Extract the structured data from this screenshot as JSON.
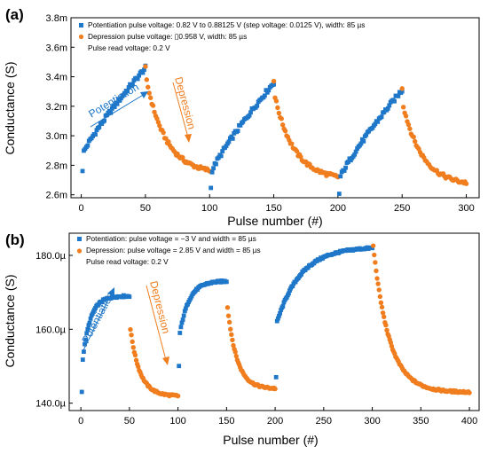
{
  "chart_data": [
    {
      "type": "scatter",
      "panel_label": "(a)",
      "xlabel": "Pulse number (#)",
      "ylabel": "Conductance (S)",
      "xlim": [
        -8,
        310
      ],
      "ylim": [
        2.58,
        3.8
      ],
      "xticks": [
        0,
        50,
        100,
        150,
        200,
        250,
        300
      ],
      "xtick_labels": [
        "0",
        "50",
        "100",
        "150",
        "200",
        "250",
        "300"
      ],
      "yticks": [
        2.6,
        2.8,
        3.0,
        3.2,
        3.4,
        3.6,
        3.8
      ],
      "ytick_labels": [
        "2.6m",
        "2.8m",
        "3.0m",
        "3.2m",
        "3.4m",
        "3.6m",
        "3.8m"
      ],
      "legend": [
        {
          "marker": "square",
          "color": "#1f77c9",
          "text": "Potentiation pulse voltage: 0.82 V to 0.88125 V (step voltage: 0.0125 V), width: 85 µs"
        },
        {
          "marker": "circle",
          "color": "#f07d1e",
          "text": "Depression pulse voltage: ▯0.958 V, width: 85 µs"
        },
        {
          "marker": "none",
          "color": "#000000",
          "text": "Pulse read voltage: 0.2 V"
        }
      ],
      "annotations": [
        {
          "text": "Potentiation",
          "color": "#1f77c9"
        },
        {
          "text": "Depression",
          "color": "#f07d1e"
        }
      ],
      "cycles": 3,
      "pulses_per_phase": 50,
      "potentiation": [
        {
          "start": 2.79,
          "end": 3.46
        },
        {
          "start": 2.66,
          "end": 3.36
        },
        {
          "start": 2.62,
          "end": 3.31
        }
      ],
      "depression": [
        {
          "start": 3.37,
          "end": 2.74
        },
        {
          "start": 3.26,
          "end": 2.7
        },
        {
          "start": 3.2,
          "end": 2.66
        }
      ],
      "colors": {
        "potentiation": "#1f77c9",
        "depression": "#f07d1e"
      }
    },
    {
      "type": "scatter",
      "panel_label": "(b)",
      "xlabel": "Pulse number (#)",
      "ylabel": "Conductance (S)",
      "xlim": [
        -12,
        410
      ],
      "ylim": [
        138,
        186
      ],
      "xticks": [
        0,
        50,
        100,
        150,
        200,
        250,
        300,
        350,
        400
      ],
      "xtick_labels": [
        "0",
        "50",
        "100",
        "150",
        "200",
        "250",
        "300",
        "350",
        "400"
      ],
      "yticks": [
        140,
        160,
        180
      ],
      "ytick_labels": [
        "140.0µ",
        "160.0µ",
        "180.0µ"
      ],
      "legend": [
        {
          "marker": "square",
          "color": "#1f77c9",
          "text": "Potentiation: pulse voltage = −3 V and width = 85 µs"
        },
        {
          "marker": "circle",
          "color": "#f07d1e",
          "text": "Depression: pulse voltage = 2.85 V and width = 85 µs"
        },
        {
          "marker": "none",
          "color": "#000000",
          "text": "Pulse read voltage: 0.2 V"
        }
      ],
      "annotations": [
        {
          "text": "Potentiation",
          "color": "#1f77c9"
        },
        {
          "text": "Depression",
          "color": "#f07d1e"
        }
      ],
      "segments": [
        {
          "phase": "potentiation",
          "x_start": 1,
          "n": 50,
          "start": 143.0,
          "end": 169.0,
          "jump": 152.0,
          "rate": 6
        },
        {
          "phase": "depression",
          "x_start": 51,
          "n": 50,
          "start": 160.0,
          "end": 142.0,
          "rate": 5
        },
        {
          "phase": "potentiation",
          "x_start": 101,
          "n": 50,
          "start": 150.0,
          "end": 173.0,
          "jump": 159.0,
          "rate": 5
        },
        {
          "phase": "depression",
          "x_start": 151,
          "n": 50,
          "start": 166.0,
          "end": 144.0,
          "rate": 5
        },
        {
          "phase": "potentiation",
          "x_start": 201,
          "n": 100,
          "start": 147.0,
          "end": 182.0,
          "jump": 162.0,
          "rate": 4
        },
        {
          "phase": "depression",
          "x_start": 301,
          "n": 100,
          "start": 182.5,
          "end": 143.0,
          "rate": 6
        }
      ],
      "colors": {
        "potentiation": "#1f77c9",
        "depression": "#f07d1e"
      }
    }
  ]
}
